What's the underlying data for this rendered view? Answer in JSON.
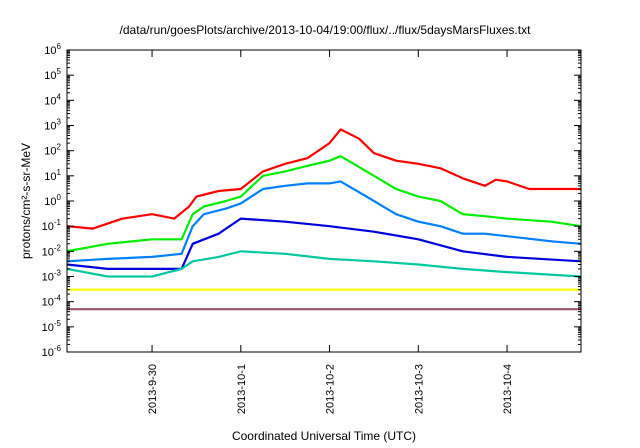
{
  "chart_data": {
    "type": "line",
    "title": "/data/run/goesPlots/archive/2013-10-04/19:00/flux/../flux/5daysMarsFluxes.txt",
    "xlabel": "Coordinated Universal Time (UTC)",
    "ylabel": "protons/cm²-s-sr-MeV",
    "y_scale": "log",
    "ylim": [
      1e-06,
      1000000.0
    ],
    "xlim": [
      "2013-09-29 01:00",
      "2013-10-04 20:00"
    ],
    "x_ticks": [
      "2013-9-30",
      "2013-10-1",
      "2013-10-2",
      "2013-10-3",
      "2013-10-4"
    ],
    "x_tick_times": [
      "2013-09-30 00:00",
      "2013-10-01 00:00",
      "2013-10-02 00:00",
      "2013-10-03 00:00",
      "2013-10-04 00:00"
    ],
    "y_ticks": [
      {
        "base": "10",
        "exp": "-6"
      },
      {
        "base": "10",
        "exp": "-5"
      },
      {
        "base": "10",
        "exp": "-4"
      },
      {
        "base": "10",
        "exp": "-3"
      },
      {
        "base": "10",
        "exp": "-2"
      },
      {
        "base": "10",
        "exp": "-1"
      },
      {
        "base": "10",
        "exp": "0"
      },
      {
        "base": "10",
        "exp": "1"
      },
      {
        "base": "10",
        "exp": "2"
      },
      {
        "base": "10",
        "exp": "3"
      },
      {
        "base": "10",
        "exp": "4"
      },
      {
        "base": "10",
        "exp": "5"
      },
      {
        "base": "10",
        "exp": "6"
      }
    ],
    "grid": false,
    "series": [
      {
        "color": "#ff0000",
        "values": [
          [
            "2013-09-29 01:00",
            0.1
          ],
          [
            "2013-09-29 08:00",
            0.08
          ],
          [
            "2013-09-29 16:00",
            0.2
          ],
          [
            "2013-09-30 00:00",
            0.3
          ],
          [
            "2013-09-30 06:00",
            0.2
          ],
          [
            "2013-09-30 10:00",
            0.6
          ],
          [
            "2013-09-30 12:00",
            1.5
          ],
          [
            "2013-09-30 18:00",
            2.5
          ],
          [
            "2013-10-01 00:00",
            3
          ],
          [
            "2013-10-01 06:00",
            15
          ],
          [
            "2013-10-01 12:00",
            30
          ],
          [
            "2013-10-01 18:00",
            50
          ],
          [
            "2013-10-02 00:00",
            200
          ],
          [
            "2013-10-02 03:00",
            700
          ],
          [
            "2013-10-02 08:00",
            300
          ],
          [
            "2013-10-02 12:00",
            80
          ],
          [
            "2013-10-02 18:00",
            40
          ],
          [
            "2013-10-03 00:00",
            30
          ],
          [
            "2013-10-03 06:00",
            20
          ],
          [
            "2013-10-03 12:00",
            8
          ],
          [
            "2013-10-03 18:00",
            4
          ],
          [
            "2013-10-03 21:00",
            7
          ],
          [
            "2013-10-04 00:00",
            6
          ],
          [
            "2013-10-04 06:00",
            3
          ],
          [
            "2013-10-04 12:00",
            3
          ],
          [
            "2013-10-04 20:00",
            3
          ]
        ]
      },
      {
        "color": "#00ee00",
        "values": [
          [
            "2013-09-29 01:00",
            0.01
          ],
          [
            "2013-09-29 12:00",
            0.02
          ],
          [
            "2013-09-30 00:00",
            0.03
          ],
          [
            "2013-09-30 08:00",
            0.03
          ],
          [
            "2013-09-30 11:00",
            0.3
          ],
          [
            "2013-09-30 14:00",
            0.6
          ],
          [
            "2013-09-30 20:00",
            1
          ],
          [
            "2013-10-01 00:00",
            1.5
          ],
          [
            "2013-10-01 06:00",
            10
          ],
          [
            "2013-10-01 12:00",
            15
          ],
          [
            "2013-10-01 18:00",
            25
          ],
          [
            "2013-10-02 00:00",
            40
          ],
          [
            "2013-10-02 03:00",
            60
          ],
          [
            "2013-10-02 10:00",
            15
          ],
          [
            "2013-10-02 18:00",
            3
          ],
          [
            "2013-10-03 00:00",
            1.5
          ],
          [
            "2013-10-03 06:00",
            1
          ],
          [
            "2013-10-03 12:00",
            0.3
          ],
          [
            "2013-10-03 18:00",
            0.25
          ],
          [
            "2013-10-04 00:00",
            0.2
          ],
          [
            "2013-10-04 12:00",
            0.15
          ],
          [
            "2013-10-04 20:00",
            0.1
          ]
        ]
      },
      {
        "color": "#0080ff",
        "values": [
          [
            "2013-09-29 01:00",
            0.004
          ],
          [
            "2013-09-29 12:00",
            0.005
          ],
          [
            "2013-09-30 00:00",
            0.006
          ],
          [
            "2013-09-30 08:00",
            0.008
          ],
          [
            "2013-09-30 11:00",
            0.1
          ],
          [
            "2013-09-30 14:00",
            0.3
          ],
          [
            "2013-09-30 20:00",
            0.5
          ],
          [
            "2013-10-01 00:00",
            0.8
          ],
          [
            "2013-10-01 06:00",
            3
          ],
          [
            "2013-10-01 12:00",
            4
          ],
          [
            "2013-10-01 18:00",
            5
          ],
          [
            "2013-10-02 00:00",
            5
          ],
          [
            "2013-10-02 03:00",
            6
          ],
          [
            "2013-10-02 10:00",
            1.5
          ],
          [
            "2013-10-02 18:00",
            0.3
          ],
          [
            "2013-10-03 00:00",
            0.15
          ],
          [
            "2013-10-03 06:00",
            0.1
          ],
          [
            "2013-10-03 12:00",
            0.05
          ],
          [
            "2013-10-03 18:00",
            0.05
          ],
          [
            "2013-10-04 00:00",
            0.04
          ],
          [
            "2013-10-04 12:00",
            0.025
          ],
          [
            "2013-10-04 20:00",
            0.02
          ]
        ]
      },
      {
        "color": "#0000dd",
        "values": [
          [
            "2013-09-29 01:00",
            0.003
          ],
          [
            "2013-09-29 12:00",
            0.002
          ],
          [
            "2013-09-30 00:00",
            0.002
          ],
          [
            "2013-09-30 08:00",
            0.002
          ],
          [
            "2013-09-30 11:00",
            0.02
          ],
          [
            "2013-09-30 18:00",
            0.05
          ],
          [
            "2013-10-01 00:00",
            0.2
          ],
          [
            "2013-10-01 12:00",
            0.15
          ],
          [
            "2013-10-02 00:00",
            0.1
          ],
          [
            "2013-10-02 12:00",
            0.06
          ],
          [
            "2013-10-03 00:00",
            0.03
          ],
          [
            "2013-10-03 12:00",
            0.01
          ],
          [
            "2013-10-04 00:00",
            0.006
          ],
          [
            "2013-10-04 20:00",
            0.004
          ]
        ]
      },
      {
        "color": "#00c8a0",
        "values": [
          [
            "2013-09-29 01:00",
            0.002
          ],
          [
            "2013-09-29 12:00",
            0.001
          ],
          [
            "2013-09-30 00:00",
            0.001
          ],
          [
            "2013-09-30 08:00",
            0.002
          ],
          [
            "2013-09-30 11:00",
            0.004
          ],
          [
            "2013-09-30 18:00",
            0.006
          ],
          [
            "2013-10-01 00:00",
            0.01
          ],
          [
            "2013-10-01 12:00",
            0.008
          ],
          [
            "2013-10-02 00:00",
            0.005
          ],
          [
            "2013-10-02 12:00",
            0.004
          ],
          [
            "2013-10-03 00:00",
            0.003
          ],
          [
            "2013-10-03 12:00",
            0.002
          ],
          [
            "2013-10-04 00:00",
            0.0015
          ],
          [
            "2013-10-04 20:00",
            0.001
          ]
        ]
      },
      {
        "color": "#ffff00",
        "values": [
          [
            "2013-09-29 01:00",
            0.0003
          ],
          [
            "2013-10-04 20:00",
            0.0003
          ]
        ]
      },
      {
        "color": "#a05070",
        "values": [
          [
            "2013-09-29 01:00",
            5e-05
          ],
          [
            "2013-10-04 20:00",
            5e-05
          ]
        ]
      }
    ]
  }
}
